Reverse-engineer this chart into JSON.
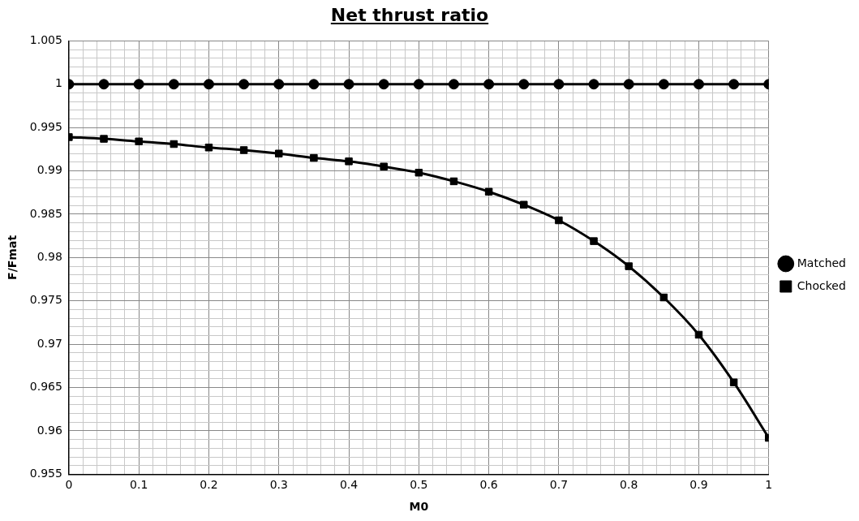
{
  "chart_data": {
    "type": "line",
    "title": "Net thrust ratio",
    "xlabel": "M0",
    "ylabel": "F/Fmat",
    "x": [
      0,
      0.05,
      0.1,
      0.15,
      0.2,
      0.25,
      0.3,
      0.35,
      0.4,
      0.45,
      0.5,
      0.55,
      0.6,
      0.65,
      0.7,
      0.75,
      0.8,
      0.85,
      0.9,
      0.95,
      1
    ],
    "series": [
      {
        "name": "Matched",
        "color": "#000000",
        "marker": "circle",
        "values": [
          1,
          1,
          1,
          1,
          1,
          1,
          1,
          1,
          1,
          1,
          1,
          1,
          1,
          1,
          1,
          1,
          1,
          1,
          1,
          1,
          1
        ]
      },
      {
        "name": "Chocked",
        "color": "#000000",
        "marker": "square",
        "values": [
          0.9939,
          0.9937,
          0.9934,
          0.9931,
          0.9927,
          0.9924,
          0.992,
          0.9915,
          0.9911,
          0.9905,
          0.9898,
          0.9888,
          0.9876,
          0.9861,
          0.9843,
          0.9819,
          0.979,
          0.9754,
          0.9711,
          0.9656,
          0.9592
        ]
      }
    ],
    "xlim": [
      0,
      1
    ],
    "xticks": [
      0,
      {
        "value": 0.02,
        "label": null
      },
      {
        "value": 0.04,
        "label": null
      },
      {
        "value": 0.06,
        "label": null
      },
      {
        "value": 0.08,
        "label": null
      },
      0.1,
      {
        "value": 0.12,
        "label": null
      },
      {
        "value": 0.14,
        "label": null
      },
      {
        "value": 0.16,
        "label": null
      },
      {
        "value": 0.18,
        "label": null
      },
      0.2,
      {
        "value": 0.22,
        "label": null
      },
      {
        "value": 0.24,
        "label": null
      },
      {
        "value": 0.26,
        "label": null
      },
      {
        "value": 0.28,
        "label": null
      },
      0.3,
      {
        "value": 0.32,
        "label": null
      },
      {
        "value": 0.34,
        "label": null
      },
      {
        "value": 0.36,
        "label": null
      },
      {
        "value": 0.38,
        "label": null
      },
      0.4,
      {
        "value": 0.42,
        "label": null
      },
      {
        "value": 0.44,
        "label": null
      },
      {
        "value": 0.46,
        "label": null
      },
      {
        "value": 0.48,
        "label": null
      },
      0.5,
      {
        "value": 0.52,
        "label": null
      },
      {
        "value": 0.54,
        "label": null
      },
      {
        "value": 0.56,
        "label": null
      },
      {
        "value": 0.58,
        "label": null
      },
      0.6,
      {
        "value": 0.62,
        "label": null
      },
      {
        "value": 0.64,
        "label": null
      },
      {
        "value": 0.66,
        "label": null
      },
      {
        "value": 0.68,
        "label": null
      },
      0.7,
      {
        "value": 0.72,
        "label": null
      },
      {
        "value": 0.74,
        "label": null
      },
      {
        "value": 0.76,
        "label": null
      },
      {
        "value": 0.78,
        "label": null
      },
      0.8,
      {
        "value": 0.82,
        "label": null
      },
      {
        "value": 0.84,
        "label": null
      },
      {
        "value": 0.86,
        "label": null
      },
      {
        "value": 0.88,
        "label": null
      },
      0.9,
      {
        "value": 0.92,
        "label": null
      },
      {
        "value": 0.94,
        "label": null
      },
      {
        "value": 0.96,
        "label": null
      },
      {
        "value": 0.98,
        "label": null
      },
      1
    ],
    "ylim": [
      0.955,
      1.005
    ],
    "yticks": [
      0.955,
      {
        "value": 0.956,
        "label": null
      },
      {
        "value": 0.957,
        "label": null
      },
      {
        "value": 0.958,
        "label": null
      },
      {
        "value": 0.959,
        "label": null
      },
      0.96,
      {
        "value": 0.961,
        "label": null
      },
      {
        "value": 0.962,
        "label": null
      },
      {
        "value": 0.963,
        "label": null
      },
      {
        "value": 0.964,
        "label": null
      },
      0.965,
      {
        "value": 0.966,
        "label": null
      },
      {
        "value": 0.967,
        "label": null
      },
      {
        "value": 0.968,
        "label": null
      },
      {
        "value": 0.969,
        "label": null
      },
      0.97,
      {
        "value": 0.971,
        "label": null
      },
      {
        "value": 0.972,
        "label": null
      },
      {
        "value": 0.973,
        "label": null
      },
      {
        "value": 0.974,
        "label": null
      },
      0.975,
      {
        "value": 0.976,
        "label": null
      },
      {
        "value": 0.977,
        "label": null
      },
      {
        "value": 0.978,
        "label": null
      },
      {
        "value": 0.979,
        "label": null
      },
      0.98,
      {
        "value": 0.981,
        "label": null
      },
      {
        "value": 0.982,
        "label": null
      },
      {
        "value": 0.983,
        "label": null
      },
      {
        "value": 0.984,
        "label": null
      },
      0.985,
      {
        "value": 0.986,
        "label": null
      },
      {
        "value": 0.987,
        "label": null
      },
      {
        "value": 0.988,
        "label": null
      },
      {
        "value": 0.989,
        "label": null
      },
      0.99,
      {
        "value": 0.991,
        "label": null
      },
      {
        "value": 0.992,
        "label": null
      },
      {
        "value": 0.993,
        "label": null
      },
      {
        "value": 0.994,
        "label": null
      },
      0.995,
      {
        "value": 0.996,
        "label": null
      },
      {
        "value": 0.997,
        "label": null
      },
      {
        "value": 0.998,
        "label": null
      },
      {
        "value": 0.999,
        "label": null
      },
      1,
      {
        "value": 1.001,
        "label": null
      },
      {
        "value": 1.002,
        "label": null
      },
      {
        "value": 1.003,
        "label": null
      },
      {
        "value": 1.004,
        "label": null
      },
      1.005
    ],
    "grid": true,
    "legend": "right",
    "line_style": "solid"
  }
}
